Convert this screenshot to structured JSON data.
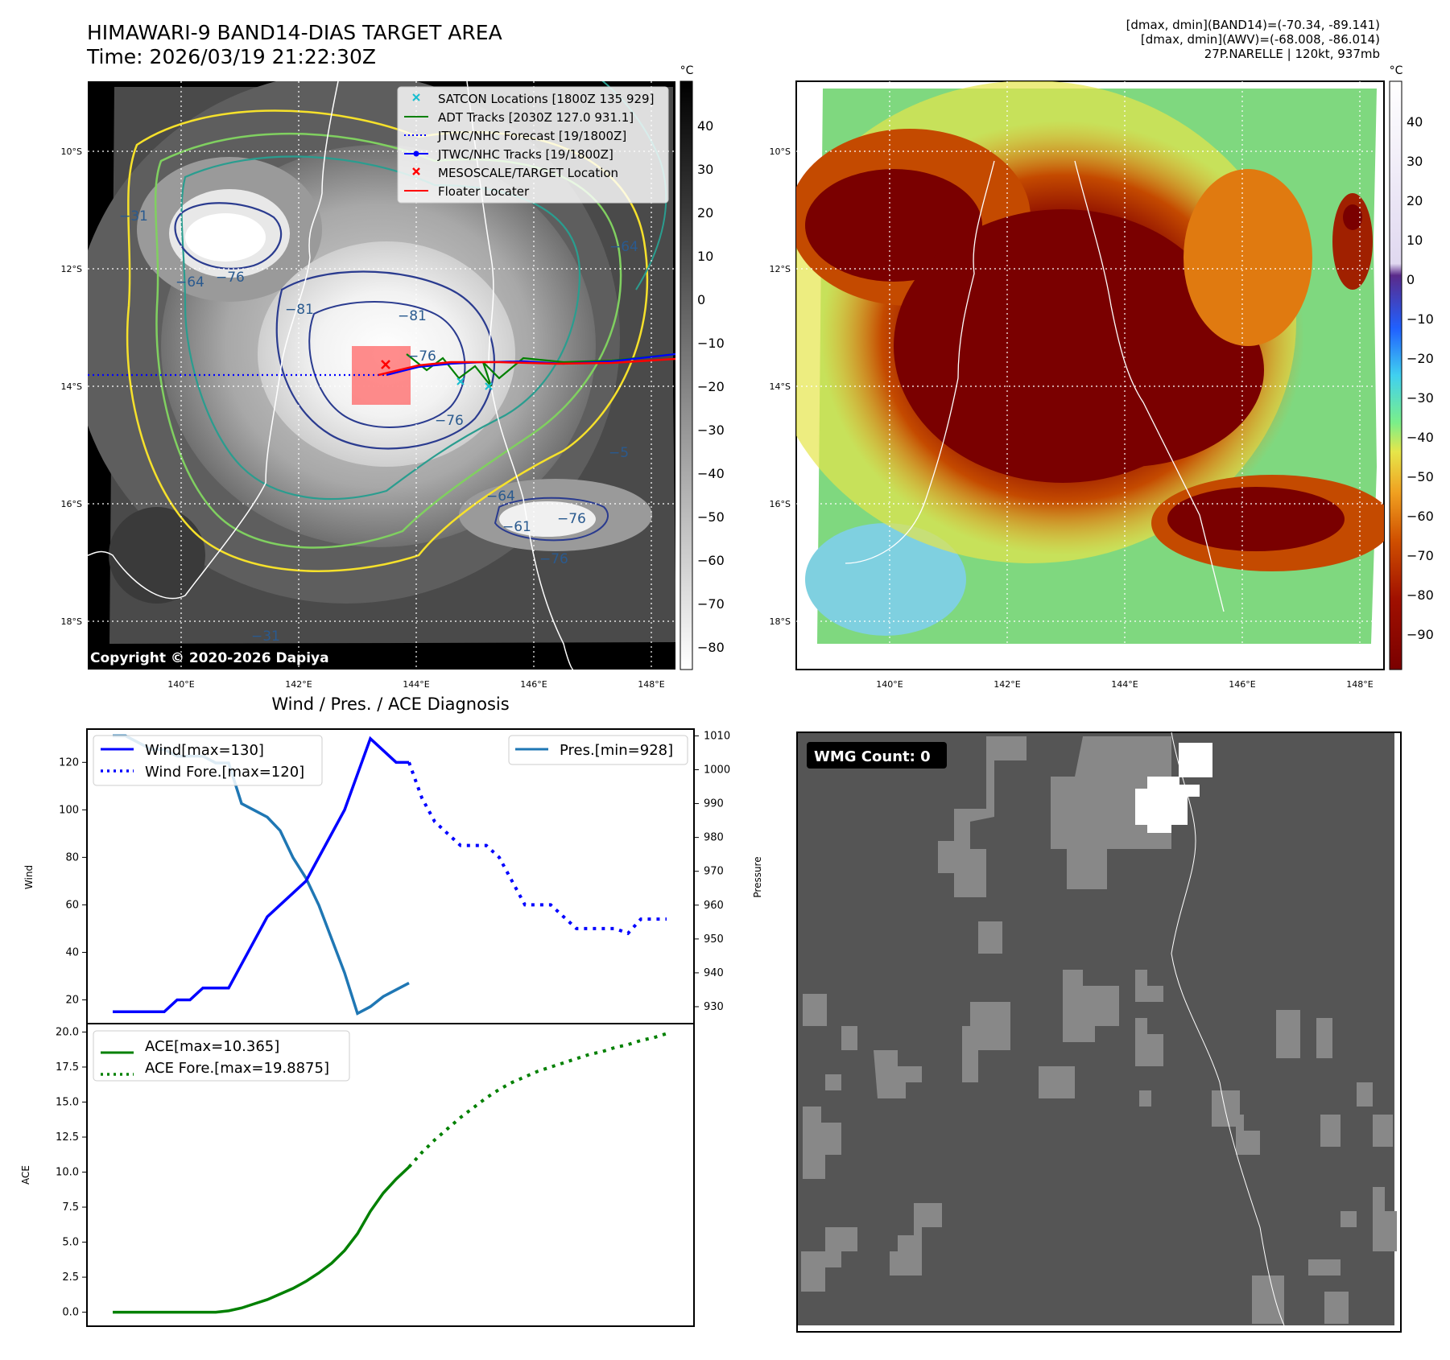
{
  "header": {
    "title_line1": "HIMAWARI-9 BAND14-DIAS TARGET AREA",
    "title_line2": "Time: 2026/03/19 21:22:30Z",
    "info_line1": "[dmax, dmin](BAND14)=(-70.34, -89.141)",
    "info_line2": "[dmax, dmin](AWV)=(-68.008, -86.014)",
    "info_line3": "27P.NARELLE | 120kt, 937mb"
  },
  "map_axes": {
    "lat_labels": [
      "10°S",
      "12°S",
      "14°S",
      "16°S",
      "18°S"
    ],
    "lon_labels": [
      "140°E",
      "142°E",
      "144°E",
      "146°E",
      "148°E"
    ],
    "copyright": "Copyright © 2020-2026 Dapiya"
  },
  "colorbar_gray": {
    "unit": "°C",
    "ticks": [
      "40",
      "30",
      "20",
      "10",
      "0",
      "−10",
      "−20",
      "−30",
      "−40",
      "−50",
      "−60",
      "−70",
      "−80"
    ]
  },
  "colorbar_color": {
    "unit": "°C",
    "ticks": [
      "40",
      "30",
      "20",
      "10",
      "0",
      "−10",
      "−20",
      "−30",
      "−40",
      "−50",
      "−60",
      "−70",
      "−80",
      "−90"
    ]
  },
  "contour_labels": [
    "−81",
    "−76",
    "−64",
    "−76",
    "−81",
    "−76",
    "−64",
    "−5",
    "−64",
    "−61",
    "−76",
    "−76",
    "−31",
    "−31"
  ],
  "map_legend": [
    {
      "label": "SATCON Locations [1800Z 135 929]",
      "color": "#17becf",
      "marker": "x"
    },
    {
      "label": "ADT Tracks [2030Z 127.0 931.1]",
      "color": "#008000",
      "marker": "line"
    },
    {
      "label": "JTWC/NHC Forecast [19/1800Z]",
      "color": "#0000ff",
      "marker": "dotted"
    },
    {
      "label": "JTWC/NHC Tracks [19/1800Z]",
      "color": "#0000ff",
      "marker": "line-dot"
    },
    {
      "label": "MESOSCALE/TARGET Location",
      "color": "#ff0000",
      "marker": "x"
    },
    {
      "label": "Floater Locater",
      "color": "#ff0000",
      "marker": "line"
    }
  ],
  "wmg": {
    "label": "WMG Count: 0"
  },
  "chart_data": [
    {
      "type": "line",
      "title": "Wind / Pres. / ACE Diagnosis",
      "ylabel": "Wind",
      "ylim": [
        10,
        134
      ],
      "yticks": [
        "20",
        "40",
        "60",
        "80",
        "100",
        "120"
      ],
      "y2label": "Pressure",
      "y2lim": [
        925,
        1012
      ],
      "y2ticks": [
        "930",
        "940",
        "950",
        "960",
        "970",
        "980",
        "990",
        "1000",
        "1010"
      ],
      "x": [
        0,
        1,
        2,
        3,
        4,
        5,
        6,
        7,
        8,
        9,
        10,
        11,
        12,
        13,
        14,
        15,
        16,
        17,
        18,
        19,
        20,
        21,
        22,
        23,
        24,
        25,
        26,
        27,
        28,
        29,
        30,
        31,
        32,
        33,
        34,
        35,
        36,
        37,
        38,
        39,
        40,
        41,
        42,
        43
      ],
      "series": [
        {
          "name": "Wind[max=130]",
          "color": "#0000ff",
          "style": "solid",
          "x": [
            0,
            1,
            2,
            3,
            4,
            5,
            6,
            7,
            8,
            9,
            10,
            11,
            12,
            13,
            14,
            15,
            16,
            17,
            18,
            19,
            20,
            21,
            22,
            23
          ],
          "values": [
            15,
            15,
            15,
            15,
            15,
            20,
            20,
            25,
            25,
            25,
            35,
            45,
            55,
            60,
            65,
            70,
            80,
            90,
            100,
            115,
            130,
            125,
            120,
            120
          ]
        },
        {
          "name": "Wind Fore.[max=120]",
          "color": "#0000ff",
          "style": "dotted",
          "x": [
            23,
            24,
            25,
            26,
            27,
            28,
            29,
            30,
            31,
            32,
            33,
            34,
            35,
            36,
            37,
            38,
            39,
            40,
            41,
            42,
            43
          ],
          "values": [
            120,
            105,
            95,
            90,
            85,
            85,
            85,
            80,
            70,
            60,
            60,
            60,
            55,
            50,
            50,
            50,
            50,
            48,
            54,
            54,
            54
          ]
        },
        {
          "name": "Pres.[min=928]",
          "color": "#1f77b4",
          "style": "solid",
          "axis": "right",
          "x": [
            0,
            1,
            2,
            3,
            4,
            5,
            6,
            7,
            8,
            9,
            10,
            11,
            12,
            13,
            14,
            15,
            16,
            17,
            18,
            19,
            20,
            21,
            22,
            23
          ],
          "values": [
            1010,
            1010,
            1008,
            1006,
            1006,
            1004,
            1004,
            1004,
            1002,
            1002,
            990,
            988,
            986,
            982,
            974,
            968,
            960,
            950,
            940,
            928,
            930,
            933,
            935,
            937
          ]
        }
      ]
    },
    {
      "type": "line",
      "ylabel": "ACE",
      "ylim": [
        -1,
        20.6
      ],
      "yticks": [
        "0.0",
        "2.5",
        "5.0",
        "7.5",
        "10.0",
        "12.5",
        "15.0",
        "17.5",
        "20.0"
      ],
      "series": [
        {
          "name": "ACE[max=10.365]",
          "color": "#008000",
          "style": "solid",
          "x": [
            0,
            1,
            2,
            3,
            4,
            5,
            6,
            7,
            8,
            9,
            10,
            11,
            12,
            13,
            14,
            15,
            16,
            17,
            18,
            19,
            20,
            21,
            22,
            23
          ],
          "values": [
            0,
            0,
            0,
            0,
            0,
            0,
            0,
            0,
            0,
            0.1,
            0.3,
            0.6,
            0.9,
            1.3,
            1.7,
            2.2,
            2.8,
            3.5,
            4.4,
            5.6,
            7.2,
            8.5,
            9.5,
            10.365
          ]
        },
        {
          "name": "ACE Fore.[max=19.8875]",
          "color": "#008000",
          "style": "dotted",
          "x": [
            23,
            24,
            25,
            26,
            27,
            28,
            29,
            30,
            31,
            32,
            33,
            34,
            35,
            36,
            37,
            38,
            39,
            40,
            41,
            42,
            43
          ],
          "values": [
            10.365,
            11.4,
            12.3,
            13.1,
            13.9,
            14.6,
            15.3,
            15.9,
            16.4,
            16.8,
            17.2,
            17.5,
            17.8,
            18.1,
            18.4,
            18.6,
            18.9,
            19.1,
            19.4,
            19.6,
            19.8875
          ]
        }
      ]
    }
  ]
}
